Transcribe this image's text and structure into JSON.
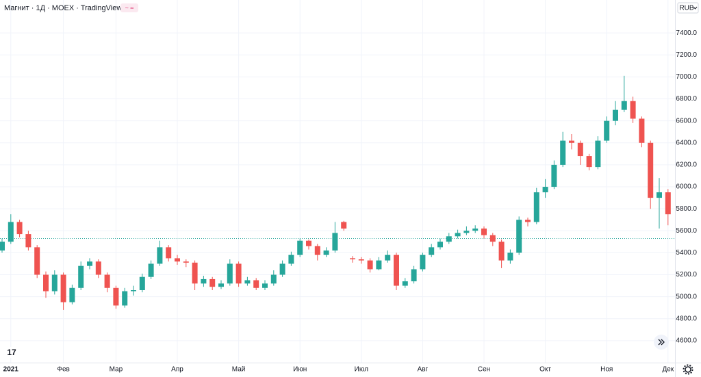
{
  "chart_data": {
    "type": "candlestick",
    "title": "Магнит · 1Д · MOEX · TradingView",
    "currency": "RUB",
    "up_color": "#26a69a",
    "down_color": "#ef5350",
    "grid": true,
    "ylim": [
      4400,
      7700
    ],
    "yticks": [
      {
        "value": 4600,
        "label": "4600.0"
      },
      {
        "value": 4800,
        "label": "4800.0"
      },
      {
        "value": 5000,
        "label": "5000.0"
      },
      {
        "value": 5200,
        "label": "5200.0"
      },
      {
        "value": 5400,
        "label": "5400.0"
      },
      {
        "value": 5600,
        "label": "5600.0"
      },
      {
        "value": 5800,
        "label": "5800.0"
      },
      {
        "value": 6000,
        "label": "6000.0"
      },
      {
        "value": 6200,
        "label": "6200.0"
      },
      {
        "value": 6400,
        "label": "6400.0"
      },
      {
        "value": 6600,
        "label": "6600.0"
      },
      {
        "value": 6800,
        "label": "6800.0"
      },
      {
        "value": 7000,
        "label": "7000.0"
      },
      {
        "value": 7200,
        "label": "7200.0"
      },
      {
        "value": 7400,
        "label": "7400.0"
      }
    ],
    "reference_line": 5530,
    "categories": [
      null,
      "2021",
      null,
      null,
      null,
      null,
      null,
      "Фев",
      null,
      null,
      null,
      null,
      null,
      "Мар",
      null,
      null,
      null,
      null,
      null,
      null,
      "Апр",
      null,
      null,
      null,
      null,
      null,
      null,
      "Май",
      null,
      null,
      null,
      null,
      null,
      null,
      "Июн",
      null,
      null,
      null,
      null,
      null,
      null,
      "Июл",
      null,
      null,
      null,
      null,
      null,
      null,
      "Авг",
      null,
      null,
      null,
      null,
      null,
      null,
      "Сен",
      null,
      null,
      null,
      null,
      null,
      null,
      "Окт",
      null,
      null,
      null,
      null,
      null,
      null,
      "Ноя",
      null,
      null,
      null,
      null,
      null,
      null,
      "Дек"
    ],
    "open": [
      5420,
      5500,
      5680,
      5570,
      5450,
      5200,
      5050,
      5200,
      4950,
      5080,
      5280,
      5320,
      5200,
      5080,
      4920,
      5050,
      5060,
      5180,
      5300,
      5450,
      5350,
      5320,
      5310,
      5120,
      5160,
      5090,
      5120,
      5300,
      5120,
      5150,
      5080,
      5120,
      5200,
      5300,
      5380,
      5510,
      5460,
      5380,
      5420,
      5680,
      5350,
      5340,
      5330,
      5250,
      5330,
      5380,
      5100,
      5140,
      5250,
      5380,
      5450,
      5500,
      5550,
      5580,
      5600,
      5620,
      5560,
      5500,
      5330,
      5400,
      5700,
      5680,
      5950,
      6000,
      6200,
      6420,
      6400,
      6280,
      6180,
      6420,
      6600,
      6700,
      6780,
      6620,
      6400,
      5900,
      5950
    ],
    "high": [
      5530,
      5750,
      5700,
      5600,
      5470,
      5230,
      5240,
      5220,
      5110,
      5320,
      5350,
      5340,
      5220,
      5100,
      5080,
      5100,
      5210,
      5330,
      5510,
      5470,
      5380,
      5340,
      5330,
      5190,
      5180,
      5150,
      5340,
      5320,
      5180,
      5170,
      5150,
      5240,
      5330,
      5410,
      5530,
      5520,
      5480,
      5450,
      5680,
      5690,
      5370,
      5360,
      5350,
      5360,
      5420,
      5400,
      5170,
      5280,
      5400,
      5480,
      5530,
      5580,
      5610,
      5640,
      5650,
      5640,
      5580,
      5520,
      5430,
      5730,
      5720,
      5990,
      6070,
      6240,
      6500,
      6480,
      6420,
      6300,
      6460,
      6640,
      6780,
      7010,
      6820,
      6640,
      6420,
      6080,
      5980
    ],
    "low": [
      5400,
      5480,
      5540,
      5420,
      5170,
      4990,
      5020,
      4880,
      4930,
      5060,
      5250,
      5170,
      5040,
      4890,
      4900,
      5010,
      5040,
      5160,
      5280,
      5320,
      5290,
      5270,
      5060,
      5090,
      5060,
      5070,
      5100,
      5090,
      5100,
      5060,
      5060,
      5100,
      5180,
      5280,
      5360,
      5430,
      5330,
      5360,
      5400,
      5600,
      5310,
      5300,
      5220,
      5240,
      5310,
      5060,
      5080,
      5120,
      5230,
      5360,
      5430,
      5480,
      5530,
      5560,
      5580,
      5530,
      5460,
      5260,
      5300,
      5380,
      5640,
      5660,
      5900,
      5980,
      6180,
      6340,
      6200,
      6150,
      6160,
      6400,
      6560,
      6680,
      6580,
      6360,
      5800,
      5620,
      5650
    ],
    "close": [
      5500,
      5680,
      5570,
      5450,
      5200,
      5050,
      5200,
      4950,
      5080,
      5280,
      5320,
      5200,
      5080,
      4920,
      5050,
      5060,
      5180,
      5300,
      5450,
      5350,
      5320,
      5310,
      5120,
      5160,
      5090,
      5120,
      5300,
      5120,
      5150,
      5080,
      5120,
      5200,
      5300,
      5380,
      5510,
      5460,
      5380,
      5420,
      5580,
      5620,
      5340,
      5330,
      5250,
      5330,
      5380,
      5100,
      5140,
      5250,
      5380,
      5450,
      5500,
      5550,
      5580,
      5600,
      5620,
      5560,
      5500,
      5330,
      5400,
      5700,
      5680,
      5950,
      6000,
      6200,
      6420,
      6400,
      6280,
      6180,
      6420,
      6600,
      6700,
      6780,
      6620,
      6400,
      5900,
      5950,
      5750
    ]
  }
}
